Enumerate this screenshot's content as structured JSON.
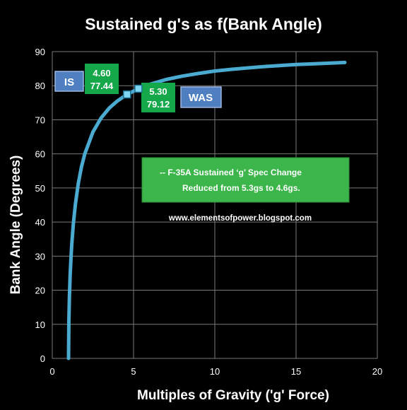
{
  "chart_data": {
    "type": "line",
    "title": "Sustained g's as f(Bank Angle)",
    "xlabel": "Multiples of Gravity ('g' Force)",
    "ylabel": "Bank Angle (Degrees)",
    "xlim": [
      0,
      20
    ],
    "ylim": [
      0,
      90
    ],
    "xticks": [
      "0",
      "5",
      "10",
      "15",
      "20"
    ],
    "yticks": [
      "0",
      "10",
      "20",
      "30",
      "40",
      "50",
      "60",
      "70",
      "80",
      "90"
    ],
    "grid": true,
    "legend": "none",
    "line_color": "#4aaad0",
    "x": [
      1.0,
      1.02,
      1.05,
      1.1,
      1.15,
      1.2,
      1.3,
      1.42,
      1.6,
      1.8,
      2.0,
      2.5,
      3.0,
      3.5,
      4.0,
      4.6,
      5.3,
      6.0,
      7.0,
      8.0,
      9.0,
      10.0,
      11.0,
      12.0,
      13.0,
      14.0,
      15.0,
      16.0,
      17.0,
      18.0
    ],
    "y": [
      0,
      11.3,
      17.8,
      24.6,
      29.6,
      33.6,
      39.7,
      45.2,
      51.3,
      56.3,
      60.0,
      66.4,
      70.5,
      73.4,
      75.5,
      77.44,
      79.12,
      80.4,
      81.8,
      82.8,
      83.6,
      84.3,
      84.8,
      85.2,
      85.6,
      85.9,
      86.2,
      86.4,
      86.6,
      86.8
    ],
    "markers": [
      {
        "name": "IS",
        "x": 4.6,
        "y": 77.44,
        "x_label": "4.60",
        "y_label": "77.44"
      },
      {
        "name": "WAS",
        "x": 5.3,
        "y": 79.12,
        "x_label": "5.30",
        "y_label": "79.12"
      }
    ],
    "annotation": {
      "line1": "-- F-35A Sustained ‘g’ Spec Change",
      "line2": "Reduced from 5.3gs to 4.6gs."
    },
    "source_text": "www.elementsofpower.blogspot.com"
  },
  "colors": {
    "background": "#000000",
    "grid": "#7a7a7a",
    "callout_green": "#15a84a",
    "note_green": "#3cb54a",
    "tag_blue": "#4f7fc0",
    "marker": "#7fd6f0"
  }
}
